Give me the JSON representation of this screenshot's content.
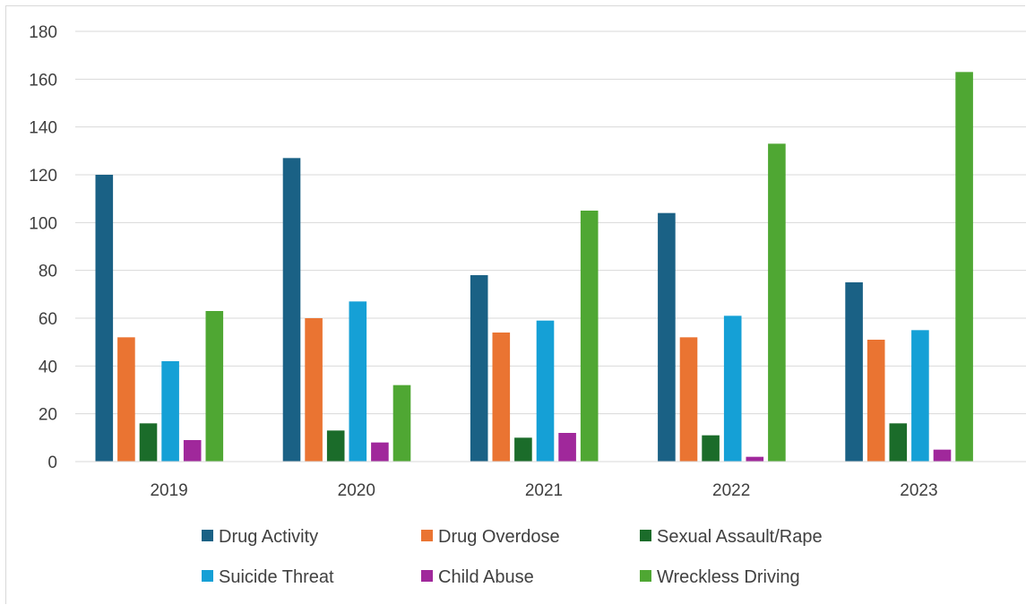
{
  "chart_data": {
    "type": "bar",
    "title": "",
    "xlabel": "",
    "ylabel": "",
    "categories": [
      "2019",
      "2020",
      "2021",
      "2022",
      "2023"
    ],
    "ylim": [
      0,
      180
    ],
    "yticks": [
      0,
      20,
      40,
      60,
      80,
      100,
      120,
      140,
      160,
      180
    ],
    "grid": true,
    "legend_position": "bottom",
    "series": [
      {
        "name": "Drug Activity",
        "color": "#1a6185",
        "values": [
          120,
          127,
          78,
          104,
          75
        ]
      },
      {
        "name": "Drug Overdose",
        "color": "#ea7432",
        "values": [
          52,
          60,
          54,
          52,
          51
        ]
      },
      {
        "name": "Sexual Assault/Rape",
        "color": "#1b6c2a",
        "values": [
          16,
          13,
          10,
          11,
          16
        ]
      },
      {
        "name": "Suicide Threat",
        "color": "#15a0d6",
        "values": [
          42,
          67,
          59,
          61,
          55
        ]
      },
      {
        "name": "Child Abuse",
        "color": "#a0289b",
        "values": [
          9,
          8,
          12,
          2,
          5
        ]
      },
      {
        "name": "Wreckless Driving",
        "color": "#4fa733",
        "values": [
          63,
          32,
          105,
          133,
          163
        ]
      }
    ]
  }
}
